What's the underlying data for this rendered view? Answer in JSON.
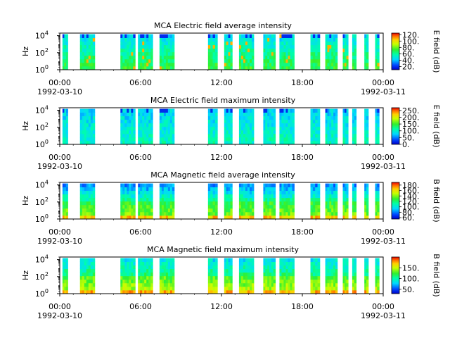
{
  "chart_data": [
    {
      "type": "heatmap",
      "title": "MCA  Electric field average intensity",
      "ylabel": "Hz",
      "y_scale": "log",
      "ylim": [
        1,
        20000
      ],
      "y_ticks": [
        {
          "v": 1,
          "b": "10",
          "e": "0"
        },
        {
          "v": 100,
          "b": "10",
          "e": "2"
        },
        {
          "v": 10000,
          "b": "10",
          "e": "4"
        }
      ],
      "xlim": [
        "1992-03-10T00:00",
        "1992-03-11T00:00"
      ],
      "x_ticks": [
        {
          "t": 0,
          "label": "00:00",
          "sub": "1992-03-10"
        },
        {
          "t": 6,
          "label": "06:00",
          "sub": ""
        },
        {
          "t": 12,
          "label": "12:00",
          "sub": ""
        },
        {
          "t": 18,
          "label": "18:00",
          "sub": ""
        },
        {
          "t": 24,
          "label": "00:00",
          "sub": "1992-03-11"
        }
      ],
      "colorbar": {
        "label": "E field (dB)",
        "range": [
          10,
          125
        ],
        "ticks": [
          "20.",
          "40.",
          "60.",
          "80.",
          "100.",
          "120."
        ]
      },
      "coverage_hours": [
        [
          0.2,
          0.6
        ],
        [
          1.5,
          2.6
        ],
        [
          4.5,
          5.6
        ],
        [
          5.8,
          6.9
        ],
        [
          7.4,
          8.5
        ],
        [
          11.0,
          11.7
        ],
        [
          12.2,
          12.8
        ],
        [
          13.3,
          14.4
        ],
        [
          15.1,
          16.0
        ],
        [
          16.3,
          17.4
        ],
        [
          18.6,
          19.3
        ],
        [
          19.7,
          20.6
        ],
        [
          21.0,
          21.4
        ],
        [
          21.7,
          22.0
        ],
        [
          22.6,
          22.9
        ],
        [
          23.4,
          23.7
        ]
      ]
    },
    {
      "type": "heatmap",
      "title": "MCA  Electric field maximum intensity",
      "ylabel": "Hz",
      "y_scale": "log",
      "ylim": [
        1,
        20000
      ],
      "y_ticks": [
        {
          "v": 1,
          "b": "10",
          "e": "0"
        },
        {
          "v": 100,
          "b": "10",
          "e": "2"
        },
        {
          "v": 10000,
          "b": "10",
          "e": "4"
        }
      ],
      "xlim": [
        "1992-03-10T00:00",
        "1992-03-11T00:00"
      ],
      "x_ticks": [
        {
          "t": 0,
          "label": "00:00",
          "sub": "1992-03-10"
        },
        {
          "t": 6,
          "label": "06:00",
          "sub": ""
        },
        {
          "t": 12,
          "label": "12:00",
          "sub": ""
        },
        {
          "t": 18,
          "label": "18:00",
          "sub": ""
        },
        {
          "t": 24,
          "label": "00:00",
          "sub": "1992-03-11"
        }
      ],
      "colorbar": {
        "label": "E field (dB)",
        "range": [
          0,
          270
        ],
        "ticks": [
          "0.",
          "50.",
          "100.",
          "150.",
          "200.",
          "250."
        ]
      },
      "coverage_hours": [
        [
          0.2,
          0.6
        ],
        [
          1.5,
          2.6
        ],
        [
          4.5,
          5.6
        ],
        [
          5.8,
          6.9
        ],
        [
          7.4,
          8.5
        ],
        [
          11.0,
          11.7
        ],
        [
          12.2,
          12.8
        ],
        [
          13.3,
          14.4
        ],
        [
          15.1,
          16.0
        ],
        [
          16.3,
          17.4
        ],
        [
          18.6,
          19.3
        ],
        [
          19.7,
          20.6
        ],
        [
          21.0,
          21.4
        ],
        [
          21.7,
          22.0
        ],
        [
          22.6,
          22.9
        ],
        [
          23.4,
          23.7
        ]
      ]
    },
    {
      "type": "heatmap",
      "title": "MCA  Magnetic field average intensity",
      "ylabel": "Hz",
      "y_scale": "log",
      "ylim": [
        1,
        20000
      ],
      "y_ticks": [
        {
          "v": 1,
          "b": "10",
          "e": "0"
        },
        {
          "v": 100,
          "b": "10",
          "e": "2"
        },
        {
          "v": 10000,
          "b": "10",
          "e": "4"
        }
      ],
      "xlim": [
        "1992-03-10T00:00",
        "1992-03-11T00:00"
      ],
      "x_ticks": [
        {
          "t": 0,
          "label": "00:00",
          "sub": "1992-03-10"
        },
        {
          "t": 6,
          "label": "06:00",
          "sub": ""
        },
        {
          "t": 12,
          "label": "12:00",
          "sub": ""
        },
        {
          "t": 18,
          "label": "18:00",
          "sub": ""
        },
        {
          "t": 24,
          "label": "00:00",
          "sub": "1992-03-11"
        }
      ],
      "colorbar": {
        "label": "B field (dB)",
        "range": [
          55,
          190
        ],
        "ticks": [
          "60.",
          "80.",
          "100.",
          "120.",
          "140.",
          "160.",
          "180."
        ]
      },
      "coverage_hours": [
        [
          0.2,
          0.6
        ],
        [
          1.5,
          2.6
        ],
        [
          4.5,
          5.6
        ],
        [
          5.8,
          6.9
        ],
        [
          7.4,
          8.5
        ],
        [
          11.0,
          11.7
        ],
        [
          12.2,
          12.8
        ],
        [
          13.3,
          14.4
        ],
        [
          15.1,
          16.0
        ],
        [
          16.3,
          17.4
        ],
        [
          18.6,
          19.3
        ],
        [
          19.7,
          20.6
        ],
        [
          21.0,
          21.4
        ],
        [
          21.7,
          22.0
        ],
        [
          22.6,
          22.9
        ],
        [
          23.4,
          23.7
        ]
      ]
    },
    {
      "type": "heatmap",
      "title": "MCA  Magnetic field maximum intensity",
      "ylabel": "Hz",
      "y_scale": "log",
      "ylim": [
        1,
        20000
      ],
      "y_ticks": [
        {
          "v": 1,
          "b": "10",
          "e": "0"
        },
        {
          "v": 100,
          "b": "10",
          "e": "2"
        },
        {
          "v": 10000,
          "b": "10",
          "e": "4"
        }
      ],
      "xlim": [
        "1992-03-10T00:00",
        "1992-03-11T00:00"
      ],
      "x_ticks": [
        {
          "t": 0,
          "label": "00:00",
          "sub": "1992-03-10"
        },
        {
          "t": 6,
          "label": "06:00",
          "sub": ""
        },
        {
          "t": 12,
          "label": "12:00",
          "sub": ""
        },
        {
          "t": 18,
          "label": "18:00",
          "sub": ""
        },
        {
          "t": 24,
          "label": "00:00",
          "sub": "1992-03-11"
        }
      ],
      "colorbar": {
        "label": "B field (dB)",
        "range": [
          30,
          200
        ],
        "ticks": [
          "50.",
          "100.",
          "150."
        ]
      },
      "coverage_hours": [
        [
          0.2,
          0.6
        ],
        [
          1.5,
          2.6
        ],
        [
          4.5,
          5.6
        ],
        [
          5.8,
          6.9
        ],
        [
          7.4,
          8.5
        ],
        [
          11.0,
          11.7
        ],
        [
          12.2,
          12.8
        ],
        [
          13.3,
          14.4
        ],
        [
          15.1,
          16.0
        ],
        [
          16.3,
          17.4
        ],
        [
          18.6,
          19.3
        ],
        [
          19.7,
          20.6
        ],
        [
          21.0,
          21.4
        ],
        [
          21.7,
          22.0
        ],
        [
          22.6,
          22.9
        ],
        [
          23.4,
          23.7
        ]
      ]
    }
  ]
}
